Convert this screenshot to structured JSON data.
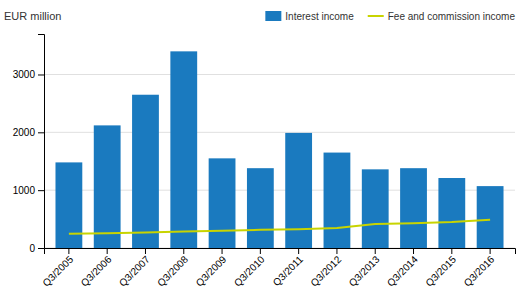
{
  "chart_data": {
    "type": "bar",
    "ylabel": "EUR million",
    "categories": [
      "Q3/2005",
      "Q3/2006",
      "Q3/2007",
      "Q3/2008",
      "Q3/2009",
      "Q3/2010",
      "Q3/2011",
      "Q3/2012",
      "Q3/2013",
      "Q3/2014",
      "Q3/2015",
      "Q3/2016"
    ],
    "series": [
      {
        "name": "Interest income",
        "type": "bar",
        "color": "#1a7abf",
        "values": [
          1480,
          2120,
          2650,
          3400,
          1550,
          1380,
          1990,
          1650,
          1360,
          1380,
          1210,
          1070
        ]
      },
      {
        "name": "Fee and commission income",
        "type": "line",
        "color": "#c8d400",
        "values": [
          245,
          255,
          270,
          285,
          300,
          315,
          325,
          345,
          415,
          430,
          450,
          490
        ]
      }
    ],
    "ylim": [
      0,
      3700
    ],
    "yticks": [
      0,
      1000,
      2000,
      3000
    ],
    "grid": true,
    "legend": "upper right"
  }
}
